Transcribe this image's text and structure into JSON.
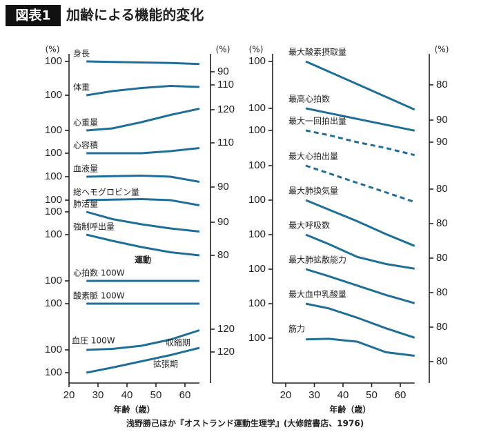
{
  "header": {
    "badge": "図表1",
    "title": "加齢による機能的変化"
  },
  "source": "浅野勝己ほか『オストランド運動生理学』(大修館書店、1976)",
  "chart_data": [
    {
      "type": "line",
      "xlabel": "年齢（歳）",
      "ylabel": "(%)",
      "y2label": "(%)",
      "xlim": [
        20,
        65
      ],
      "xticks": [
        20,
        30,
        40,
        50,
        60
      ],
      "x": [
        26,
        35,
        45,
        55,
        65
      ],
      "color": "#1f6e99",
      "annotations": [
        "運動",
        "血圧 100W"
      ],
      "series": [
        {
          "name": "身長",
          "values": [
            100,
            99.5,
            99,
            98.5,
            97.5
          ],
          "ytick": 100,
          "y2tick": 90
        },
        {
          "name": "体重",
          "values": [
            100,
            104,
            107,
            109,
            108
          ],
          "ytick": 100,
          "y2tick": 110
        },
        {
          "name": "心重量",
          "values": [
            100,
            102,
            108,
            115,
            121
          ],
          "ytick": 100,
          "y2tick": 120
        },
        {
          "name": "心容積",
          "values": [
            100,
            100,
            100,
            102,
            105
          ],
          "ytick": 100,
          "y2tick": 110
        },
        {
          "name": "血液量",
          "values": [
            100,
            100.5,
            101,
            100,
            95
          ],
          "ytick": 100,
          "y2tick": 90
        },
        {
          "name": "総ヘモグロビン量",
          "values": [
            100,
            100.5,
            101,
            100,
            95
          ],
          "ytick": 100
        },
        {
          "name": "肺活量",
          "values": [
            100,
            93,
            88,
            84,
            81
          ],
          "ytick": 100,
          "y2tick": 90
        },
        {
          "name": "強制呼出量",
          "values": [
            100,
            94,
            88,
            83,
            80
          ],
          "ytick": 100,
          "y2tick": 80
        },
        {
          "name": "心拍数 100W",
          "values": [
            100,
            100,
            100,
            100,
            100
          ],
          "ytick": 100
        },
        {
          "name": "酸素脈 100W",
          "values": [
            100,
            100,
            100,
            100,
            100
          ],
          "ytick": 100
        },
        {
          "name": "収縮期",
          "values": [
            100,
            101,
            104,
            110,
            119
          ],
          "ytick": 100,
          "y2tick": 120
        },
        {
          "name": "拡張期",
          "values": [
            100,
            105,
            111,
            117,
            124
          ],
          "ytick": 100,
          "y2tick": 120
        }
      ]
    },
    {
      "type": "line",
      "xlabel": "年齢（歳）",
      "ylabel": "(%)",
      "y2label": "(%)",
      "xlim": [
        20,
        65
      ],
      "xticks": [
        20,
        30,
        40,
        50,
        60
      ],
      "x": [
        27,
        35,
        45,
        55,
        65
      ],
      "color": "#1f6e99",
      "series": [
        {
          "name": "最大酸素摂取量",
          "values": [
            100,
            91.4,
            80.6,
            69.8,
            59
          ],
          "ytick": 100,
          "y2tick": 80
        },
        {
          "name": "最高心拍数",
          "values": [
            100,
            96,
            91,
            86,
            81
          ],
          "ytick": 100,
          "y2tick": 90
        },
        {
          "name": "最大一回拍出量",
          "values": [
            100,
            96,
            90,
            85,
            79
          ],
          "ytick": 100,
          "y2tick": 90,
          "dashed": true
        },
        {
          "name": "最大心拍出量",
          "values": [
            100,
            93.5,
            85.3,
            77.2,
            69
          ],
          "ytick": 100,
          "y2tick": 80,
          "dashed": true
        },
        {
          "name": "最大肺換気量",
          "values": [
            100,
            92,
            82,
            71,
            61
          ],
          "ytick": 100,
          "y2tick": 80
        },
        {
          "name": "最大呼吸数",
          "values": [
            100,
            92,
            81,
            75,
            71
          ],
          "ytick": 100,
          "y2tick": 80
        },
        {
          "name": "最大肺拡散能力",
          "values": [
            100,
            94,
            86,
            78,
            71
          ],
          "ytick": 100,
          "y2tick": 80
        },
        {
          "name": "最大血中乳酸量",
          "values": [
            100,
            96,
            88,
            79,
            71
          ],
          "ytick": 100,
          "y2tick": 80
        },
        {
          "name": "筋力",
          "values": [
            99,
            99.5,
            97,
            88,
            85
          ],
          "ytick": 100,
          "y2tick": 80
        }
      ]
    }
  ]
}
